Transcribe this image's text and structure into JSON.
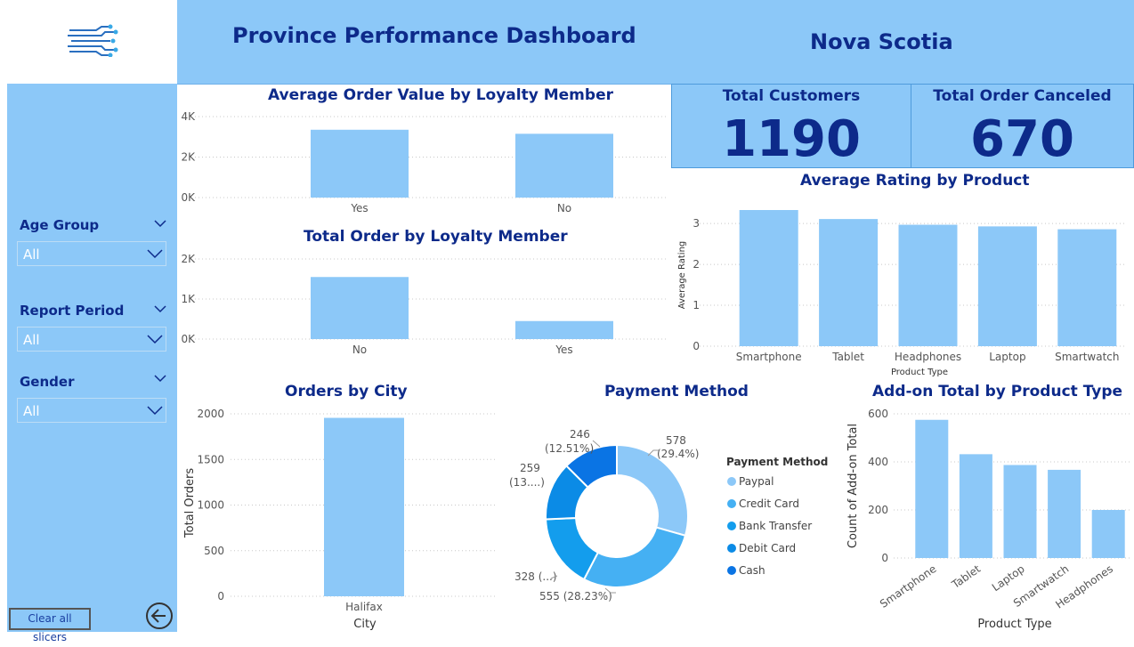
{
  "header": {
    "title": "Province Performance Dashboard",
    "province": "Nova Scotia"
  },
  "sidebar": {
    "slicers": [
      {
        "label": "Age Group",
        "value": "All"
      },
      {
        "label": "Report Period",
        "value": "All"
      },
      {
        "label": "Gender",
        "value": "All"
      }
    ],
    "clear_label": "Clear all slicers"
  },
  "kpis": {
    "customers": {
      "label": "Total Customers",
      "value": "1190"
    },
    "canceled": {
      "label": "Total Order Canceled",
      "value": "670"
    }
  },
  "colors": {
    "bar": "#8cc8f8",
    "title": "#0d2a8a",
    "header": "#8cc8f8"
  },
  "chart_data": [
    {
      "id": "aov",
      "type": "bar",
      "title": "Average Order Value by Loyalty Member",
      "categories": [
        "Yes",
        "No"
      ],
      "values": [
        3350,
        3150
      ],
      "ylim": [
        0,
        4000
      ],
      "yticks": [
        0,
        2000,
        4000
      ],
      "ytick_labels": [
        "0K",
        "2K",
        "4K"
      ],
      "xlabel": "",
      "ylabel": "",
      "grid": true
    },
    {
      "id": "orders_loyalty",
      "type": "bar",
      "title": "Total Order by Loyalty Member",
      "categories": [
        "No",
        "Yes"
      ],
      "values": [
        1550,
        450
      ],
      "ylim": [
        0,
        2000
      ],
      "yticks": [
        0,
        1000,
        2000
      ],
      "ytick_labels": [
        "0K",
        "1K",
        "2K"
      ],
      "xlabel": "",
      "ylabel": "",
      "grid": true
    },
    {
      "id": "rating",
      "type": "bar",
      "title": "Average Rating by Product",
      "categories": [
        "Smartphone",
        "Tablet",
        "Headphones",
        "Laptop",
        "Smartwatch"
      ],
      "values": [
        3.33,
        3.11,
        2.97,
        2.93,
        2.86
      ],
      "ylim": [
        0,
        3.33
      ],
      "yticks": [
        0,
        1,
        2,
        3
      ],
      "ytick_labels": [
        "0",
        "1",
        "2",
        "3"
      ],
      "xlabel": "Product Type",
      "ylabel": "Average Rating",
      "grid": true
    },
    {
      "id": "city",
      "type": "bar",
      "title": "Orders by City",
      "categories": [
        "Halifax"
      ],
      "values": [
        1956
      ],
      "ylim": [
        0,
        2000
      ],
      "yticks": [
        0,
        500,
        1000,
        1500,
        2000
      ],
      "ytick_labels": [
        "0",
        "500",
        "1000",
        "1500",
        "2000"
      ],
      "xlabel": "City",
      "ylabel": "Total Orders",
      "grid": true
    },
    {
      "id": "payment",
      "type": "pie",
      "title": "Payment Method",
      "legend_title": "Payment Method",
      "slices": [
        {
          "name": "Paypal",
          "value": 578,
          "label": "578",
          "pct_label": "(29.4%)",
          "color": "#8cc8f8"
        },
        {
          "name": "Credit Card",
          "value": 555,
          "label": "555 (28.23%)",
          "pct_label": "",
          "color": "#45b0f3"
        },
        {
          "name": "Bank Transfer",
          "value": 328,
          "label": "328 (...)",
          "pct_label": "",
          "color": "#139ded"
        },
        {
          "name": "Debit Card",
          "value": 259,
          "label": "259",
          "pct_label": "(13....)",
          "color": "#0b8be6"
        },
        {
          "name": "Cash",
          "value": 246,
          "label": "246",
          "pct_label": "(12.51%)",
          "color": "#0a74e4"
        }
      ]
    },
    {
      "id": "addon",
      "type": "bar",
      "title": "Add-on Total by Product Type",
      "categories": [
        "Smartphone",
        "Tablet",
        "Laptop",
        "Smartwatch",
        "Headphones"
      ],
      "values": [
        575,
        432,
        387,
        367,
        200
      ],
      "ylim": [
        0,
        600
      ],
      "yticks": [
        0,
        200,
        400,
        600
      ],
      "ytick_labels": [
        "0",
        "200",
        "400",
        "600"
      ],
      "xlabel": "Product Type",
      "ylabel": "Count of Add-on Total",
      "grid": true
    }
  ]
}
